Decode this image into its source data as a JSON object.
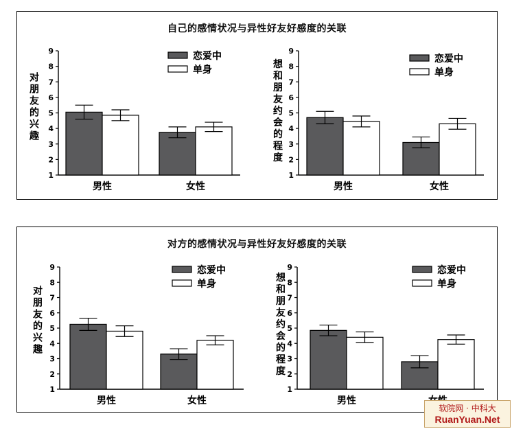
{
  "panels": [
    {
      "title": "自己的感情状况与异性好友好感度的关联",
      "charts": [
        {
          "type": "bar",
          "ylabel": "对朋友的兴趣",
          "categories": [
            "男性",
            "女性"
          ],
          "yticks": [
            1,
            2,
            3,
            4,
            5,
            6,
            7,
            8,
            9
          ],
          "ylim": [
            1,
            9
          ],
          "legend_position": "top-right",
          "series": [
            {
              "name": "恋爱中",
              "color": "#5a5a5c",
              "values": [
                5.05,
                3.75
              ],
              "errors": [
                0.45,
                0.35
              ]
            },
            {
              "name": "单身",
              "color": "#ffffff",
              "values": [
                4.85,
                4.1
              ],
              "errors": [
                0.35,
                0.3
              ]
            }
          ]
        },
        {
          "type": "bar",
          "ylabel": "想和朋友约会的程度",
          "categories": [
            "男性",
            "女性"
          ],
          "yticks": [
            1,
            2,
            3,
            4,
            5,
            6,
            7,
            8,
            9
          ],
          "ylim": [
            1,
            9
          ],
          "legend_position": "top-right",
          "series": [
            {
              "name": "恋爱中",
              "color": "#5a5a5c",
              "values": [
                4.7,
                3.1
              ],
              "errors": [
                0.4,
                0.35
              ]
            },
            {
              "name": "单身",
              "color": "#ffffff",
              "values": [
                4.45,
                4.3
              ],
              "errors": [
                0.35,
                0.35
              ]
            }
          ]
        }
      ]
    },
    {
      "title": "对方的感情状况与异性好友好感度的关联",
      "charts": [
        {
          "type": "bar",
          "ylabel": "对朋友的兴趣",
          "categories": [
            "男性",
            "女性"
          ],
          "yticks": [
            1,
            2,
            3,
            4,
            5,
            6,
            7,
            8,
            9
          ],
          "ylim": [
            1,
            9
          ],
          "legend_position": "top-right",
          "series": [
            {
              "name": "恋爱中",
              "color": "#5a5a5c",
              "values": [
                5.25,
                3.3
              ],
              "errors": [
                0.4,
                0.35
              ]
            },
            {
              "name": "单身",
              "color": "#ffffff",
              "values": [
                4.8,
                4.2
              ],
              "errors": [
                0.35,
                0.3
              ]
            }
          ]
        },
        {
          "type": "bar",
          "ylabel": "想和朋友约会的程度",
          "categories": [
            "男性",
            "女性"
          ],
          "yticks": [
            1,
            2,
            3,
            4,
            5,
            6,
            7,
            8,
            9
          ],
          "ylim": [
            1,
            9
          ],
          "legend_position": "top-right",
          "series": [
            {
              "name": "恋爱中",
              "color": "#5a5a5c",
              "values": [
                4.85,
                2.8
              ],
              "errors": [
                0.35,
                0.4
              ]
            },
            {
              "name": "单身",
              "color": "#ffffff",
              "values": [
                4.4,
                4.25
              ],
              "errors": [
                0.35,
                0.3
              ]
            }
          ]
        }
      ]
    }
  ],
  "chart_data": [
    {
      "type": "bar",
      "title": "自己的感情状况与异性好友好感度的关联",
      "ylabel": "对朋友的兴趣",
      "categories": [
        "男性",
        "女性"
      ],
      "ylim": [
        1,
        9
      ],
      "series": [
        {
          "name": "恋爱中",
          "values": [
            5.05,
            3.75
          ]
        },
        {
          "name": "单身",
          "values": [
            4.85,
            4.1
          ]
        }
      ]
    },
    {
      "type": "bar",
      "title": "自己的感情状况与异性好友好感度的关联",
      "ylabel": "想和朋友约会的程度",
      "categories": [
        "男性",
        "女性"
      ],
      "ylim": [
        1,
        9
      ],
      "series": [
        {
          "name": "恋爱中",
          "values": [
            4.7,
            3.1
          ]
        },
        {
          "name": "单身",
          "values": [
            4.45,
            4.3
          ]
        }
      ]
    },
    {
      "type": "bar",
      "title": "对方的感情状况与异性好友好感度的关联",
      "ylabel": "对朋友的兴趣",
      "categories": [
        "男性",
        "女性"
      ],
      "ylim": [
        1,
        9
      ],
      "series": [
        {
          "name": "恋爱中",
          "values": [
            5.25,
            3.3
          ]
        },
        {
          "name": "单身",
          "values": [
            4.8,
            4.2
          ]
        }
      ]
    },
    {
      "type": "bar",
      "title": "对方的感情状况与异性好友好感度的关联",
      "ylabel": "想和朋友约会的程度",
      "categories": [
        "男性",
        "女性"
      ],
      "ylim": [
        1,
        9
      ],
      "series": [
        {
          "name": "恋爱中",
          "values": [
            4.85,
            2.8
          ]
        },
        {
          "name": "单身",
          "values": [
            4.4,
            4.25
          ]
        }
      ]
    }
  ],
  "watermark": {
    "line1": "软院网 · 中科大",
    "line2": "RuanYuan.Net"
  }
}
